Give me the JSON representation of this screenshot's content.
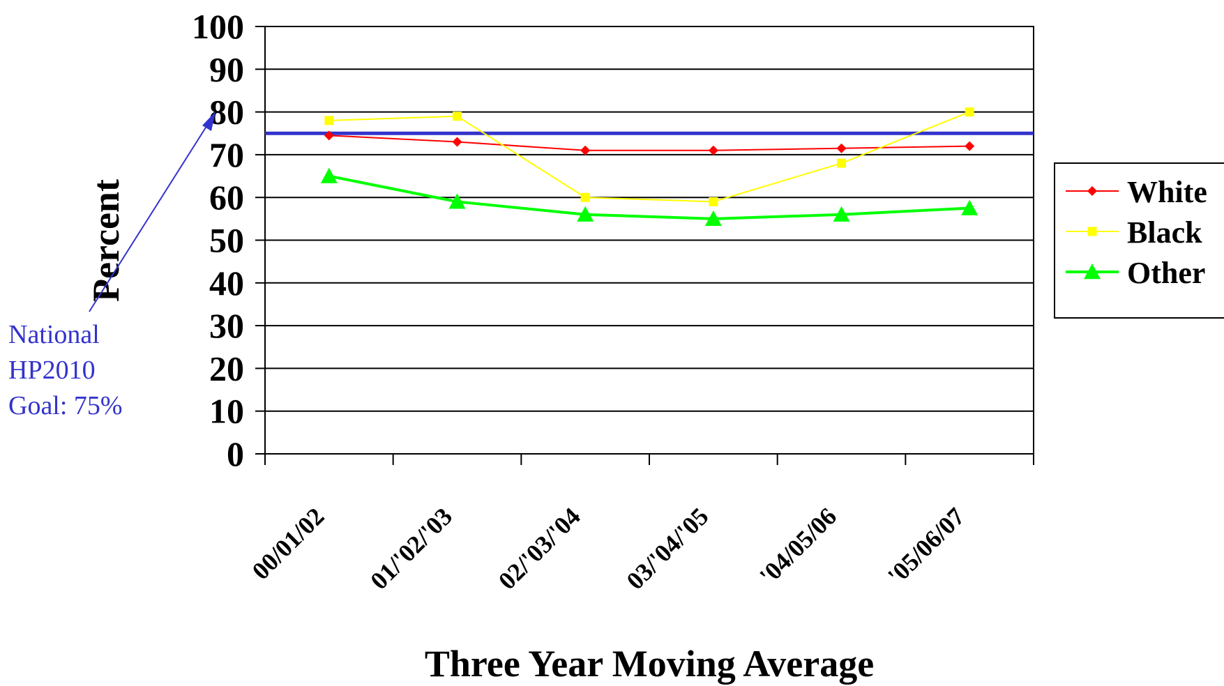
{
  "chart_data": {
    "type": "line",
    "categories": [
      "00/01/02",
      "01/'02/'03",
      "02/'03/'04",
      "03/'04/'05",
      "'04/05/06",
      "'05/06/07"
    ],
    "series": [
      {
        "name": "White",
        "color": "#ff0000",
        "marker": "diamond",
        "values": [
          74.5,
          73,
          71,
          71,
          71.5,
          72
        ]
      },
      {
        "name": "Black",
        "color": "#ffff00",
        "marker": "square",
        "values": [
          78,
          79,
          60,
          59,
          68,
          80
        ]
      },
      {
        "name": "Other",
        "color": "#00ff00",
        "marker": "triangle",
        "values": [
          65,
          59,
          56,
          55,
          56,
          57.5
        ]
      }
    ],
    "reference_line": {
      "value": 75,
      "color": "#3333cc"
    },
    "annotation": [
      "National",
      "HP2010",
      "Goal: 75%"
    ],
    "xlabel": "Three Year Moving Average",
    "ylabel": "Percent",
    "ylim": [
      0,
      100
    ],
    "yticks": [
      "0",
      "10",
      "20",
      "30",
      "40",
      "50",
      "60",
      "70",
      "80",
      "90",
      "100"
    ],
    "grid": true,
    "legend_position": "right"
  }
}
